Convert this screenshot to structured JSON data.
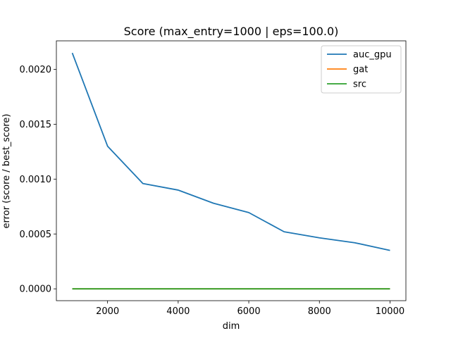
{
  "chart_data": {
    "type": "line",
    "title": "Score (max_entry=1000 | eps=100.0)",
    "xlabel": "dim",
    "ylabel": "error (score / best_score)",
    "xlim": [
      550,
      10450
    ],
    "ylim": [
      -0.000108,
      0.00226
    ],
    "xticks": [
      2000,
      4000,
      6000,
      8000,
      10000
    ],
    "xtick_labels": [
      "2000",
      "4000",
      "6000",
      "8000",
      "10000"
    ],
    "yticks": [
      0,
      0.0005,
      0.001,
      0.0015,
      0.002
    ],
    "ytick_labels": [
      "0.0000",
      "0.0005",
      "0.0010",
      "0.0015",
      "0.0020"
    ],
    "grid": false,
    "legend_position": "top-right",
    "x": [
      1000,
      2000,
      3000,
      4000,
      5000,
      6000,
      7000,
      8000,
      9000,
      10000
    ],
    "series": [
      {
        "name": "auc_gpu",
        "color": "#1f77b4",
        "values": [
          0.00215,
          0.0013,
          0.00096,
          0.0009,
          0.00078,
          0.000695,
          0.00052,
          0.000465,
          0.00042,
          0.00035
        ]
      },
      {
        "name": "gat",
        "color": "#ff7f0e",
        "values": [
          0,
          0,
          0,
          0,
          0,
          0,
          0,
          0,
          0,
          0
        ]
      },
      {
        "name": "src",
        "color": "#2ca02c",
        "values": [
          0,
          0,
          0,
          0,
          0,
          0,
          0,
          0,
          0,
          0
        ]
      }
    ]
  }
}
